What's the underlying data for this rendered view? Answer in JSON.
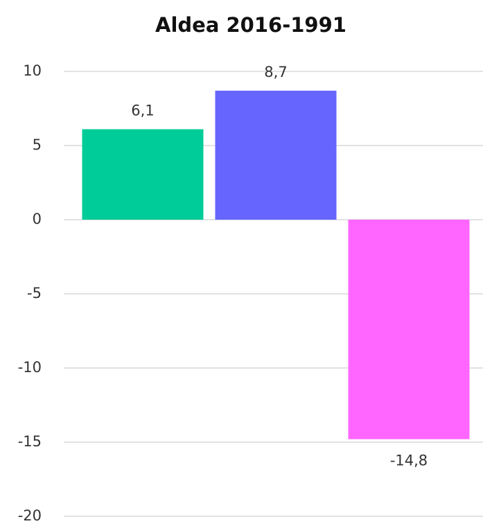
{
  "chart_data": {
    "type": "bar",
    "title": "Aldea 2016-1991",
    "categories": [
      null,
      null,
      null
    ],
    "values": [
      6.1,
      8.7,
      -14.8
    ],
    "value_labels": [
      "6,1",
      "8,7",
      "-14,8"
    ],
    "colors": [
      "#00cc99",
      "#6666ff",
      "#ff66ff"
    ],
    "ylim": [
      -20,
      10
    ],
    "yticks": [
      10,
      5,
      0,
      -5,
      -10,
      -15,
      -20
    ],
    "grid": true
  }
}
